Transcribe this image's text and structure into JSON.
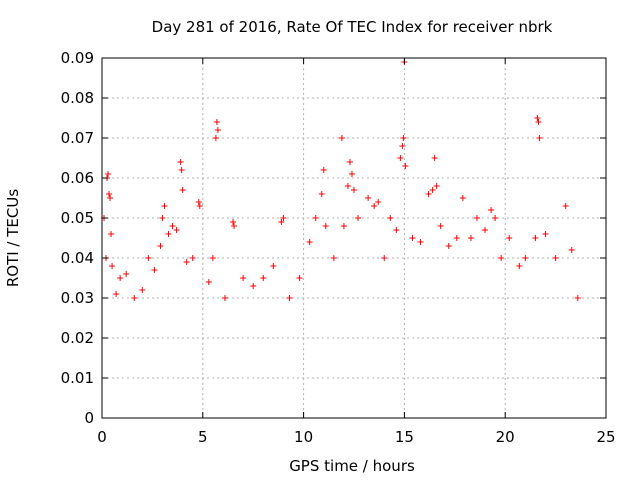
{
  "chart_data": {
    "type": "scatter",
    "title": "Day 281 of 2016, Rate Of TEC Index for receiver nbrk",
    "xlabel": "GPS time / hours",
    "ylabel": "ROTI / TECUs",
    "xlim": [
      0,
      25
    ],
    "ylim": [
      0,
      0.09
    ],
    "x_ticks": [
      0,
      5,
      10,
      15,
      20,
      25
    ],
    "y_ticks": [
      0,
      0.01,
      0.02,
      0.03,
      0.04,
      0.05,
      0.06,
      0.07,
      0.08,
      0.09
    ],
    "x_tick_labels": [
      "0",
      "5",
      "10",
      "15",
      "20",
      "25"
    ],
    "y_tick_labels": [
      "0",
      "0.01",
      "0.02",
      "0.03",
      "0.04",
      "0.05",
      "0.06",
      "0.07",
      "0.08",
      "0.09"
    ],
    "grid": true,
    "marker": "+",
    "series": [
      {
        "name": "ROTI",
        "color": "#ff0000",
        "marker": "+",
        "points": [
          [
            0.1,
            0.05
          ],
          [
            0.2,
            0.04
          ],
          [
            0.25,
            0.06
          ],
          [
            0.3,
            0.061
          ],
          [
            0.35,
            0.056
          ],
          [
            0.4,
            0.055
          ],
          [
            0.45,
            0.046
          ],
          [
            0.5,
            0.038
          ],
          [
            0.7,
            0.031
          ],
          [
            0.9,
            0.035
          ],
          [
            1.2,
            0.036
          ],
          [
            1.6,
            0.03
          ],
          [
            2.0,
            0.032
          ],
          [
            2.3,
            0.04
          ],
          [
            2.6,
            0.037
          ],
          [
            2.9,
            0.043
          ],
          [
            3.0,
            0.05
          ],
          [
            3.1,
            0.053
          ],
          [
            3.3,
            0.046
          ],
          [
            3.5,
            0.048
          ],
          [
            3.7,
            0.047
          ],
          [
            3.9,
            0.064
          ],
          [
            3.95,
            0.062
          ],
          [
            4.0,
            0.057
          ],
          [
            4.2,
            0.039
          ],
          [
            4.5,
            0.04
          ],
          [
            4.8,
            0.054
          ],
          [
            4.85,
            0.053
          ],
          [
            5.3,
            0.034
          ],
          [
            5.5,
            0.04
          ],
          [
            5.7,
            0.074
          ],
          [
            5.75,
            0.072
          ],
          [
            5.65,
            0.07
          ],
          [
            6.1,
            0.03
          ],
          [
            6.5,
            0.049
          ],
          [
            6.55,
            0.048
          ],
          [
            7.0,
            0.035
          ],
          [
            7.5,
            0.033
          ],
          [
            8.0,
            0.035
          ],
          [
            8.5,
            0.038
          ],
          [
            8.9,
            0.049
          ],
          [
            9.0,
            0.05
          ],
          [
            9.3,
            0.03
          ],
          [
            9.8,
            0.035
          ],
          [
            10.3,
            0.044
          ],
          [
            10.6,
            0.05
          ],
          [
            10.9,
            0.056
          ],
          [
            11.0,
            0.062
          ],
          [
            11.1,
            0.048
          ],
          [
            11.5,
            0.04
          ],
          [
            11.9,
            0.07
          ],
          [
            12.0,
            0.048
          ],
          [
            12.2,
            0.058
          ],
          [
            12.3,
            0.064
          ],
          [
            12.4,
            0.061
          ],
          [
            12.5,
            0.057
          ],
          [
            12.7,
            0.05
          ],
          [
            13.2,
            0.055
          ],
          [
            13.5,
            0.053
          ],
          [
            13.7,
            0.054
          ],
          [
            14.0,
            0.04
          ],
          [
            14.3,
            0.05
          ],
          [
            14.6,
            0.047
          ],
          [
            14.8,
            0.065
          ],
          [
            14.9,
            0.068
          ],
          [
            14.95,
            0.07
          ],
          [
            15.0,
            0.089
          ],
          [
            15.05,
            0.063
          ],
          [
            15.4,
            0.045
          ],
          [
            15.8,
            0.044
          ],
          [
            16.2,
            0.056
          ],
          [
            16.4,
            0.057
          ],
          [
            16.5,
            0.065
          ],
          [
            16.6,
            0.058
          ],
          [
            16.8,
            0.048
          ],
          [
            17.2,
            0.043
          ],
          [
            17.6,
            0.045
          ],
          [
            17.9,
            0.055
          ],
          [
            18.3,
            0.045
          ],
          [
            18.6,
            0.05
          ],
          [
            19.0,
            0.047
          ],
          [
            19.3,
            0.052
          ],
          [
            19.5,
            0.05
          ],
          [
            19.8,
            0.04
          ],
          [
            20.2,
            0.045
          ],
          [
            20.7,
            0.038
          ],
          [
            21.0,
            0.04
          ],
          [
            21.5,
            0.045
          ],
          [
            21.6,
            0.075
          ],
          [
            21.65,
            0.074
          ],
          [
            21.7,
            0.07
          ],
          [
            22.0,
            0.046
          ],
          [
            22.5,
            0.04
          ],
          [
            23.0,
            0.053
          ],
          [
            23.3,
            0.042
          ],
          [
            23.6,
            0.03
          ]
        ]
      }
    ]
  }
}
